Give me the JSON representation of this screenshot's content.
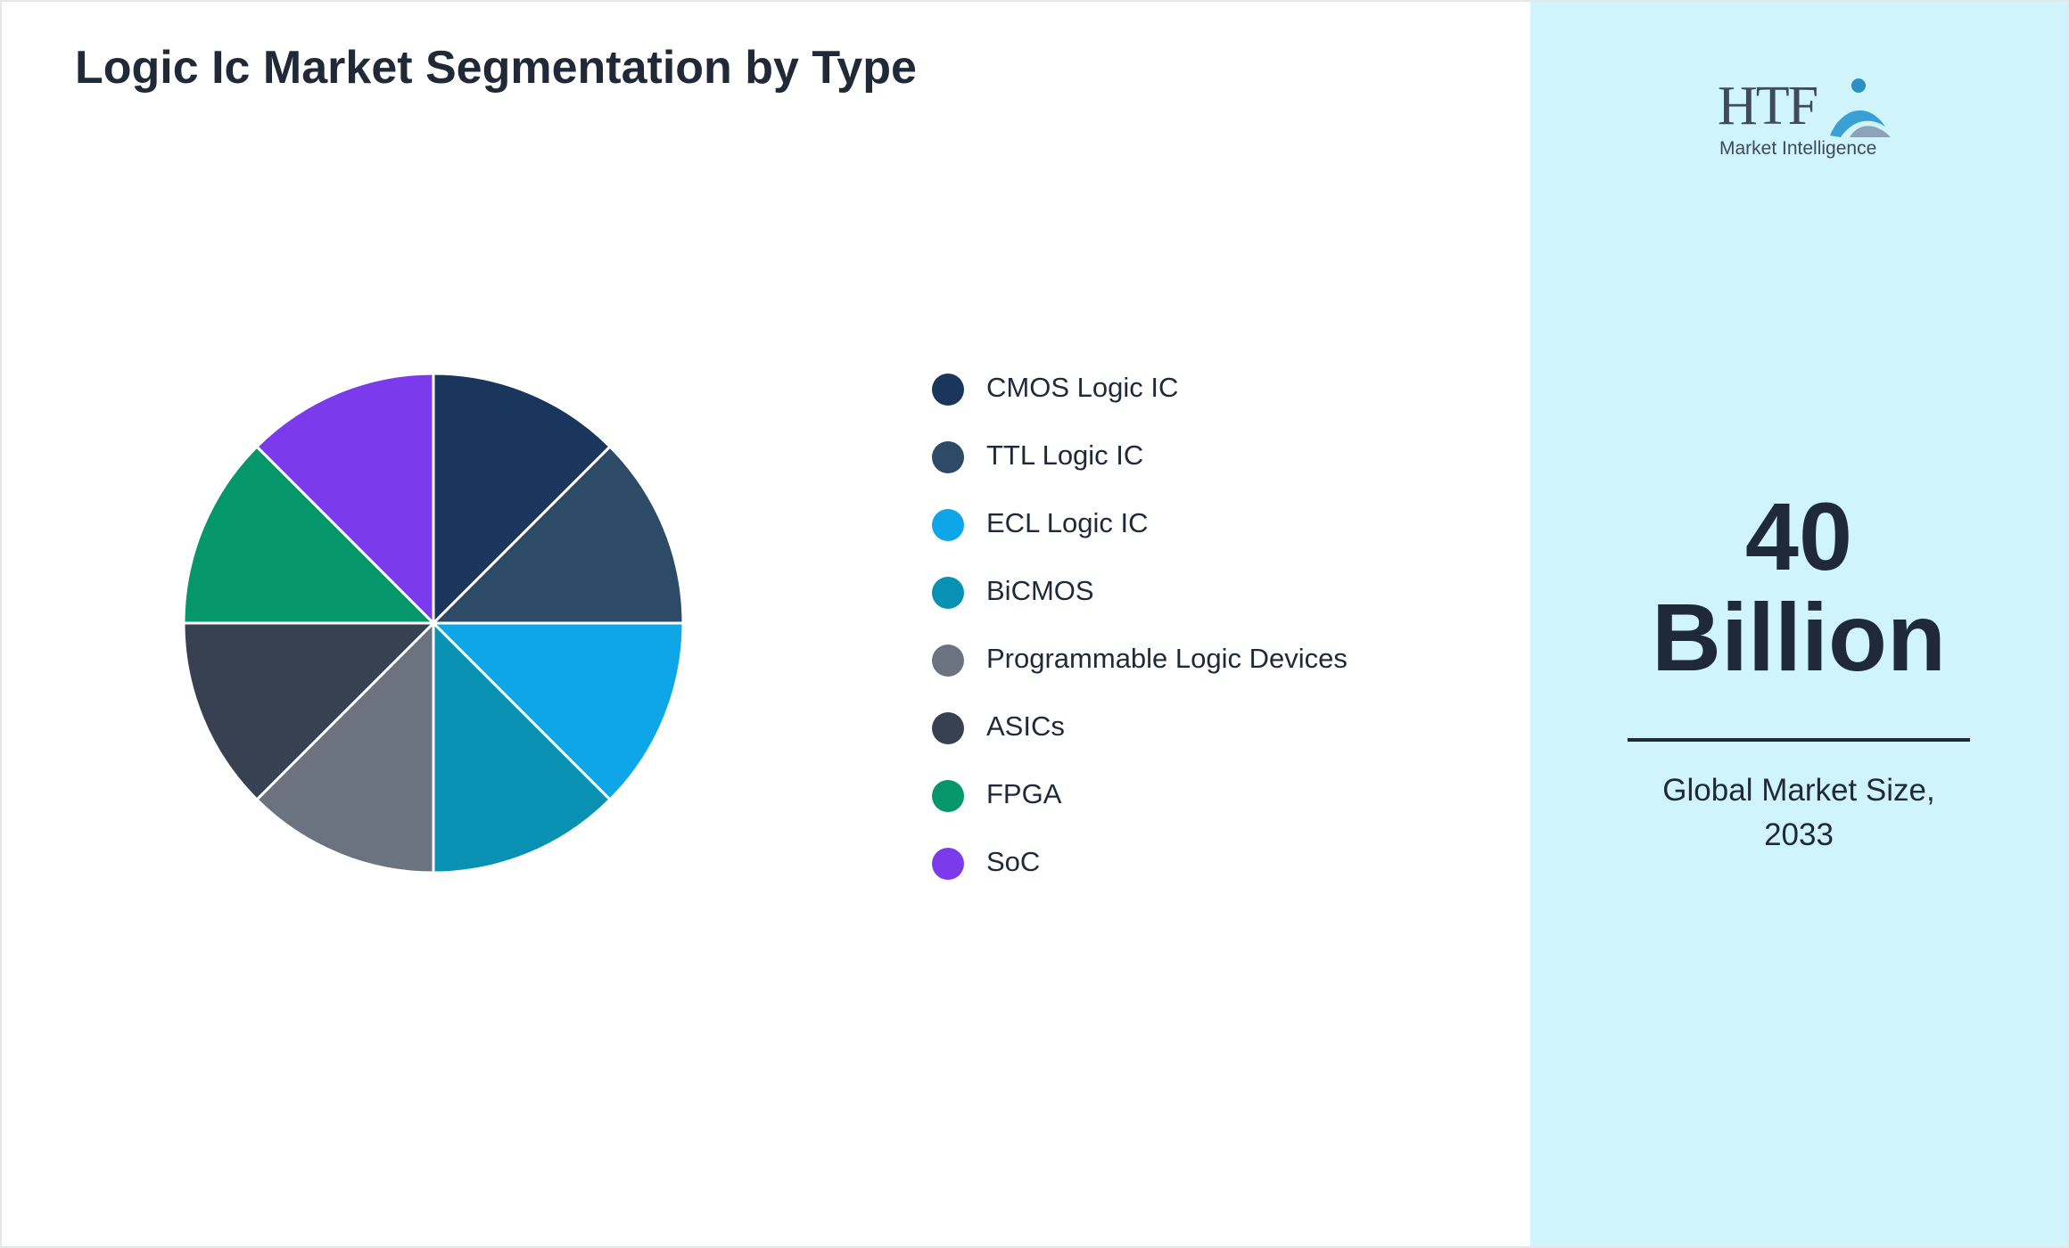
{
  "chart_data": {
    "type": "pie",
    "title": "Logic Ic Market Segmentation by Type",
    "categories": [
      "CMOS Logic IC",
      "TTL Logic IC",
      "ECL Logic IC",
      "BiCMOS",
      "Programmable Logic Devices",
      "ASICs",
      "FPGA",
      "SoC"
    ],
    "values": [
      12.5,
      12.5,
      12.5,
      12.5,
      12.5,
      12.5,
      12.5,
      12.5
    ],
    "colors": [
      "#1b365d",
      "#2d4a66",
      "#0ea5e9",
      "#0891b2",
      "#6b7280",
      "#374151",
      "#059669",
      "#7c3aed"
    ]
  },
  "side_panel": {
    "logo": {
      "mark": "HTF",
      "text": "Market Intelligence"
    },
    "value": "40",
    "unit": "Billion",
    "caption": "Global Market Size, 2033"
  }
}
